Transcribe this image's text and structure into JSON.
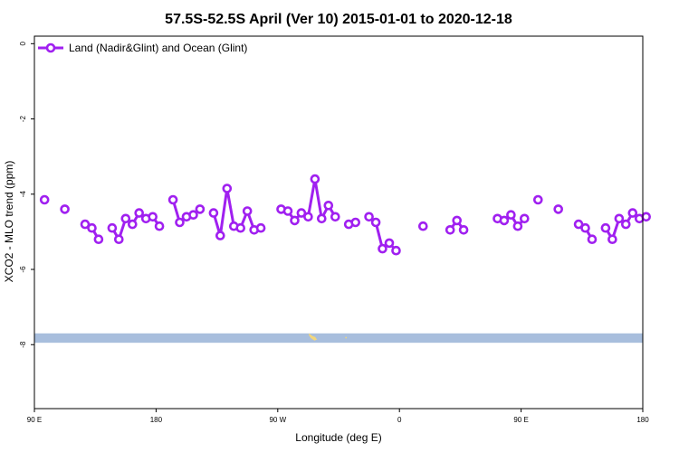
{
  "chart_data": {
    "type": "line",
    "title": "57.5S-52.5S April (Ver 10)   2015-01-01 to 2020-12-18",
    "xlabel": "Longitude (deg E)",
    "ylabel": "XCO2 - MLO trend (ppm)",
    "xlim": [
      90,
      540
    ],
    "ylim": [
      -9.7,
      0.2
    ],
    "x_ticks": [
      {
        "value": 90,
        "label": "90 E"
      },
      {
        "value": 180,
        "label": "180"
      },
      {
        "value": 270,
        "label": "90 W"
      },
      {
        "value": 360,
        "label": "0"
      },
      {
        "value": 450,
        "label": "90 E"
      },
      {
        "value": 540,
        "label": "180"
      }
    ],
    "y_ticks": [
      {
        "value": 0,
        "label": "0"
      },
      {
        "value": -2,
        "label": "-2"
      },
      {
        "value": -4,
        "label": "-4"
      },
      {
        "value": -6,
        "label": "-6"
      },
      {
        "value": -8,
        "label": "-8"
      }
    ],
    "legend": {
      "position": "top-left"
    },
    "grid": false,
    "series": [
      {
        "name": "Land (Nadir&Glint) and Ocean (Glint)",
        "color": "#a020f0",
        "segments": [
          [
            [
              97.5,
              -4.15
            ]
          ],
          [
            [
              112.5,
              -4.4
            ]
          ],
          [
            [
              127.5,
              -4.8
            ],
            [
              132.5,
              -4.9
            ],
            [
              137.5,
              -5.2
            ]
          ],
          [
            [
              147.5,
              -4.9
            ],
            [
              152.5,
              -5.2
            ],
            [
              157.5,
              -4.65
            ],
            [
              162.5,
              -4.8
            ],
            [
              167.5,
              -4.5
            ],
            [
              172.5,
              -4.65
            ],
            [
              177.5,
              -4.6
            ],
            [
              182.5,
              -4.85
            ]
          ],
          [
            [
              192.5,
              -4.15
            ],
            [
              197.5,
              -4.75
            ],
            [
              202.5,
              -4.6
            ],
            [
              207.5,
              -4.55
            ],
            [
              212.5,
              -4.4
            ]
          ],
          [
            [
              222.5,
              -4.5
            ],
            [
              227.5,
              -5.1
            ],
            [
              232.5,
              -3.85
            ],
            [
              237.5,
              -4.85
            ],
            [
              242.5,
              -4.9
            ],
            [
              247.5,
              -4.45
            ],
            [
              252.5,
              -4.95
            ],
            [
              257.5,
              -4.9
            ]
          ],
          [
            [
              272.5,
              -4.4
            ],
            [
              277.5,
              -4.45
            ],
            [
              282.5,
              -4.7
            ],
            [
              287.5,
              -4.5
            ],
            [
              292.5,
              -4.6
            ],
            [
              297.5,
              -3.6
            ],
            [
              302.5,
              -4.65
            ],
            [
              307.5,
              -4.3
            ],
            [
              312.5,
              -4.6
            ]
          ],
          [
            [
              322.5,
              -4.8
            ],
            [
              327.5,
              -4.75
            ]
          ],
          [
            [
              337.5,
              -4.6
            ],
            [
              342.5,
              -4.75
            ],
            [
              347.5,
              -5.45
            ],
            [
              352.5,
              -5.3
            ],
            [
              357.5,
              -5.5
            ]
          ],
          [
            [
              377.5,
              -4.85
            ]
          ],
          [
            [
              397.5,
              -4.95
            ],
            [
              402.5,
              -4.7
            ],
            [
              407.5,
              -4.95
            ]
          ],
          [
            [
              432.5,
              -4.65
            ],
            [
              437.5,
              -4.7
            ],
            [
              442.5,
              -4.55
            ],
            [
              447.5,
              -4.85
            ],
            [
              452.5,
              -4.65
            ]
          ],
          [
            [
              462.5,
              -4.15
            ]
          ],
          [
            [
              477.5,
              -4.4
            ]
          ],
          [
            [
              492.5,
              -4.8
            ],
            [
              497.5,
              -4.9
            ],
            [
              502.5,
              -5.2
            ]
          ],
          [
            [
              512.5,
              -4.9
            ],
            [
              517.5,
              -5.2
            ],
            [
              522.5,
              -4.65
            ],
            [
              527.5,
              -4.8
            ],
            [
              532.5,
              -4.5
            ],
            [
              537.5,
              -4.65
            ],
            [
              542.5,
              -4.6
            ]
          ]
        ]
      }
    ],
    "map_strip": {
      "y_top": -7.7,
      "y_bottom": -7.95,
      "ocean_color": "#a8bedd",
      "land_color": "#f3d77a"
    }
  }
}
